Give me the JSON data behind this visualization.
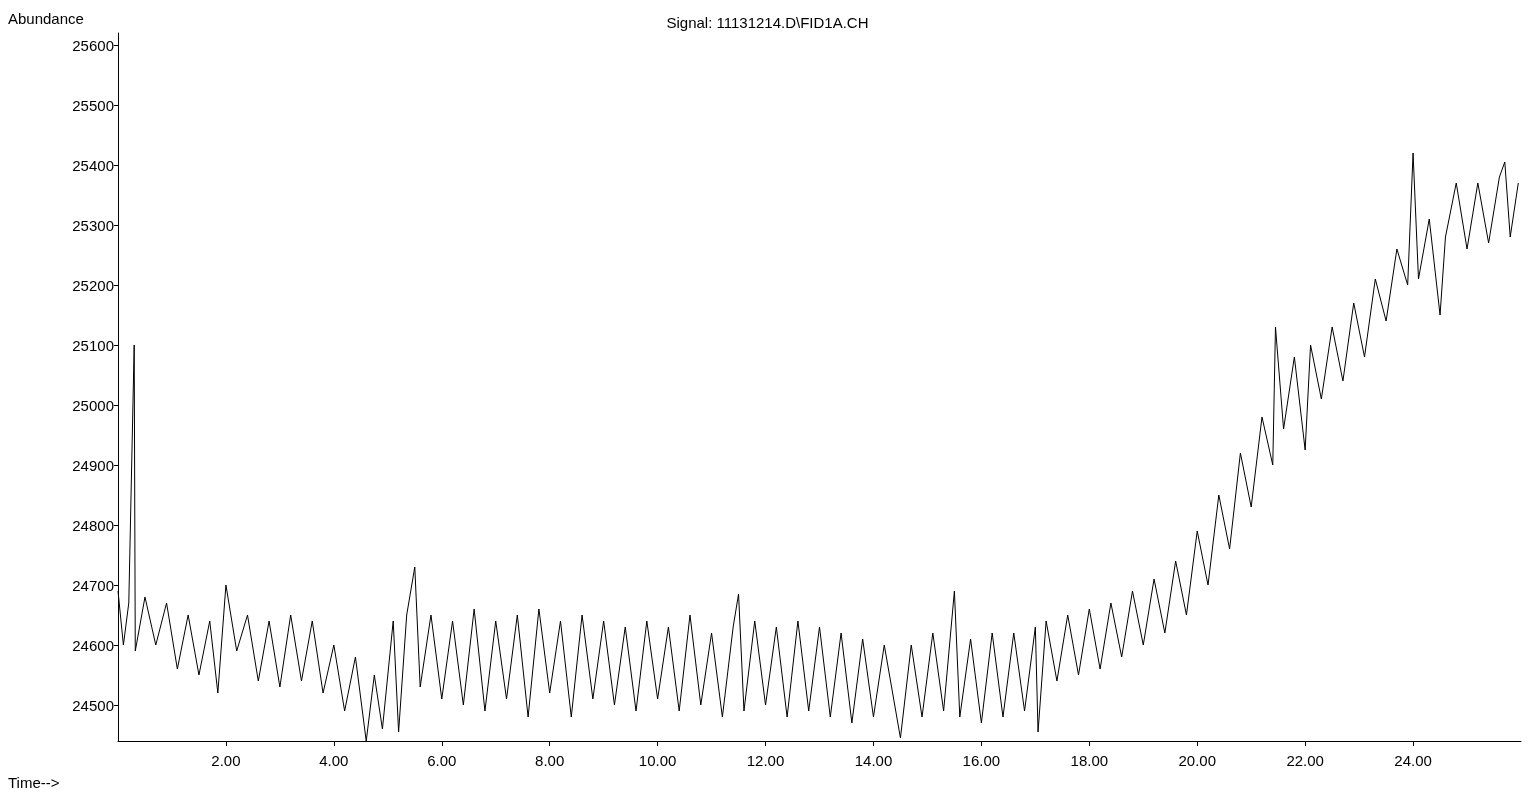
{
  "chart_data": {
    "type": "line",
    "title": "Signal: 11131214.D\\FID1A.CH",
    "xlabel": "Time-->",
    "ylabel": "Abundance",
    "xlim": [
      0,
      26
    ],
    "ylim": [
      24440,
      25620
    ],
    "xticks": [
      {
        "value": 2,
        "label": "2.00"
      },
      {
        "value": 4,
        "label": "4.00"
      },
      {
        "value": 6,
        "label": "6.00"
      },
      {
        "value": 8,
        "label": "8.00"
      },
      {
        "value": 10,
        "label": "10.00"
      },
      {
        "value": 12,
        "label": "12.00"
      },
      {
        "value": 14,
        "label": "14.00"
      },
      {
        "value": 16,
        "label": "16.00"
      },
      {
        "value": 18,
        "label": "18.00"
      },
      {
        "value": 20,
        "label": "20.00"
      },
      {
        "value": 22,
        "label": "22.00"
      },
      {
        "value": 24,
        "label": "24.00"
      }
    ],
    "yticks": [
      24500,
      24600,
      24700,
      24800,
      24900,
      25000,
      25100,
      25200,
      25300,
      25400,
      25500,
      25600
    ],
    "marker": "none",
    "line_style": "solid",
    "series": [
      {
        "color": "#000000",
        "x": [
          0.0,
          0.1,
          0.2,
          0.3,
          0.32,
          0.5,
          0.7,
          0.9,
          1.1,
          1.3,
          1.5,
          1.7,
          1.85,
          2.0,
          2.2,
          2.4,
          2.6,
          2.8,
          3.0,
          3.2,
          3.4,
          3.6,
          3.8,
          4.0,
          4.2,
          4.4,
          4.6,
          4.75,
          4.9,
          5.1,
          5.2,
          5.35,
          5.5,
          5.6,
          5.8,
          6.0,
          6.2,
          6.4,
          6.6,
          6.8,
          7.0,
          7.2,
          7.4,
          7.6,
          7.8,
          8.0,
          8.2,
          8.4,
          8.6,
          8.8,
          9.0,
          9.2,
          9.4,
          9.6,
          9.8,
          10.0,
          10.2,
          10.4,
          10.6,
          10.8,
          11.0,
          11.2,
          11.4,
          11.5,
          11.6,
          11.8,
          12.0,
          12.2,
          12.4,
          12.6,
          12.8,
          13.0,
          13.2,
          13.4,
          13.6,
          13.8,
          14.0,
          14.2,
          14.5,
          14.7,
          14.9,
          15.1,
          15.3,
          15.5,
          15.6,
          15.8,
          16.0,
          16.2,
          16.4,
          16.6,
          16.8,
          17.0,
          17.05,
          17.2,
          17.4,
          17.6,
          17.8,
          18.0,
          18.2,
          18.4,
          18.6,
          18.8,
          19.0,
          19.2,
          19.4,
          19.6,
          19.8,
          20.0,
          20.2,
          20.4,
          20.6,
          20.8,
          21.0,
          21.2,
          21.4,
          21.45,
          21.6,
          21.8,
          22.0,
          22.1,
          22.3,
          22.5,
          22.7,
          22.9,
          23.1,
          23.3,
          23.5,
          23.7,
          23.9,
          24.0,
          24.1,
          24.3,
          24.5,
          24.6,
          24.8,
          25.0,
          25.2,
          25.4,
          25.6,
          25.7,
          25.8,
          25.95
        ],
        "values": [
          24690,
          24600,
          24670,
          25100,
          24590,
          24680,
          24600,
          24670,
          24560,
          24650,
          24550,
          24640,
          24520,
          24700,
          24590,
          24650,
          24540,
          24640,
          24530,
          24650,
          24540,
          24640,
          24520,
          24600,
          24490,
          24580,
          24440,
          24550,
          24460,
          24640,
          24455,
          24650,
          24730,
          24530,
          24650,
          24510,
          24640,
          24500,
          24660,
          24490,
          24640,
          24510,
          24650,
          24480,
          24660,
          24520,
          24640,
          24480,
          24650,
          24510,
          24640,
          24500,
          24630,
          24490,
          24640,
          24510,
          24630,
          24490,
          24650,
          24500,
          24620,
          24480,
          24630,
          24685,
          24490,
          24640,
          24500,
          24630,
          24480,
          24640,
          24490,
          24630,
          24480,
          24620,
          24470,
          24610,
          24480,
          24600,
          24445,
          24600,
          24480,
          24620,
          24490,
          24690,
          24480,
          24610,
          24470,
          24620,
          24480,
          24620,
          24490,
          24630,
          24455,
          24640,
          24540,
          24650,
          24550,
          24660,
          24560,
          24670,
          24580,
          24690,
          24600,
          24710,
          24620,
          24740,
          24650,
          24790,
          24700,
          24850,
          24760,
          24920,
          24830,
          24980,
          24900,
          25130,
          24960,
          25080,
          24925,
          25100,
          25010,
          25130,
          25040,
          25170,
          25080,
          25210,
          25140,
          25260,
          25200,
          25420,
          25210,
          25310,
          25150,
          25280,
          25370,
          25260,
          25370,
          25270,
          25380,
          25405,
          25280,
          25370
        ]
      }
    ]
  }
}
